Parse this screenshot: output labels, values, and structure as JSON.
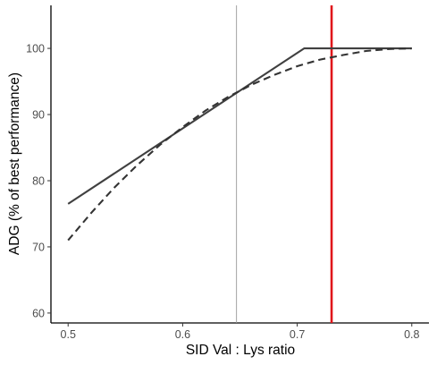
{
  "chart_data": {
    "type": "line",
    "title": "",
    "xlabel": "SID Val : Lys ratio",
    "ylabel": "ADG (% of best performance)",
    "xlim": [
      0.485,
      0.815
    ],
    "ylim": [
      58.5,
      106.5
    ],
    "x_ticks": [
      0.5,
      0.6,
      0.7,
      0.8
    ],
    "x_tick_labels": [
      "0.5",
      "0.6",
      "0.7",
      "0.8"
    ],
    "y_ticks": [
      60,
      70,
      80,
      90,
      100
    ],
    "y_tick_labels": [
      "60",
      "70",
      "80",
      "90",
      "100"
    ],
    "grid": false,
    "legend": "none",
    "series": [
      {
        "style": "solid",
        "color": "#404040",
        "x": [
          0.5,
          0.706,
          0.8
        ],
        "y": [
          76.5,
          100,
          100
        ]
      },
      {
        "style": "dashed",
        "color": "#333333",
        "x": [
          0.5,
          0.52,
          0.54,
          0.56,
          0.58,
          0.6,
          0.62,
          0.64,
          0.66,
          0.68,
          0.7,
          0.72,
          0.74,
          0.76,
          0.78,
          0.8
        ],
        "y": [
          71.0,
          75.1,
          78.9,
          82.3,
          85.4,
          88.1,
          90.6,
          92.7,
          94.5,
          96.0,
          97.3,
          98.3,
          99.0,
          99.6,
          99.9,
          100.0
        ]
      }
    ],
    "vlines": [
      {
        "x": 0.647,
        "color": "#999999",
        "width": "thin"
      },
      {
        "x": 0.73,
        "color": "#e0161b",
        "width": "thick"
      }
    ]
  }
}
